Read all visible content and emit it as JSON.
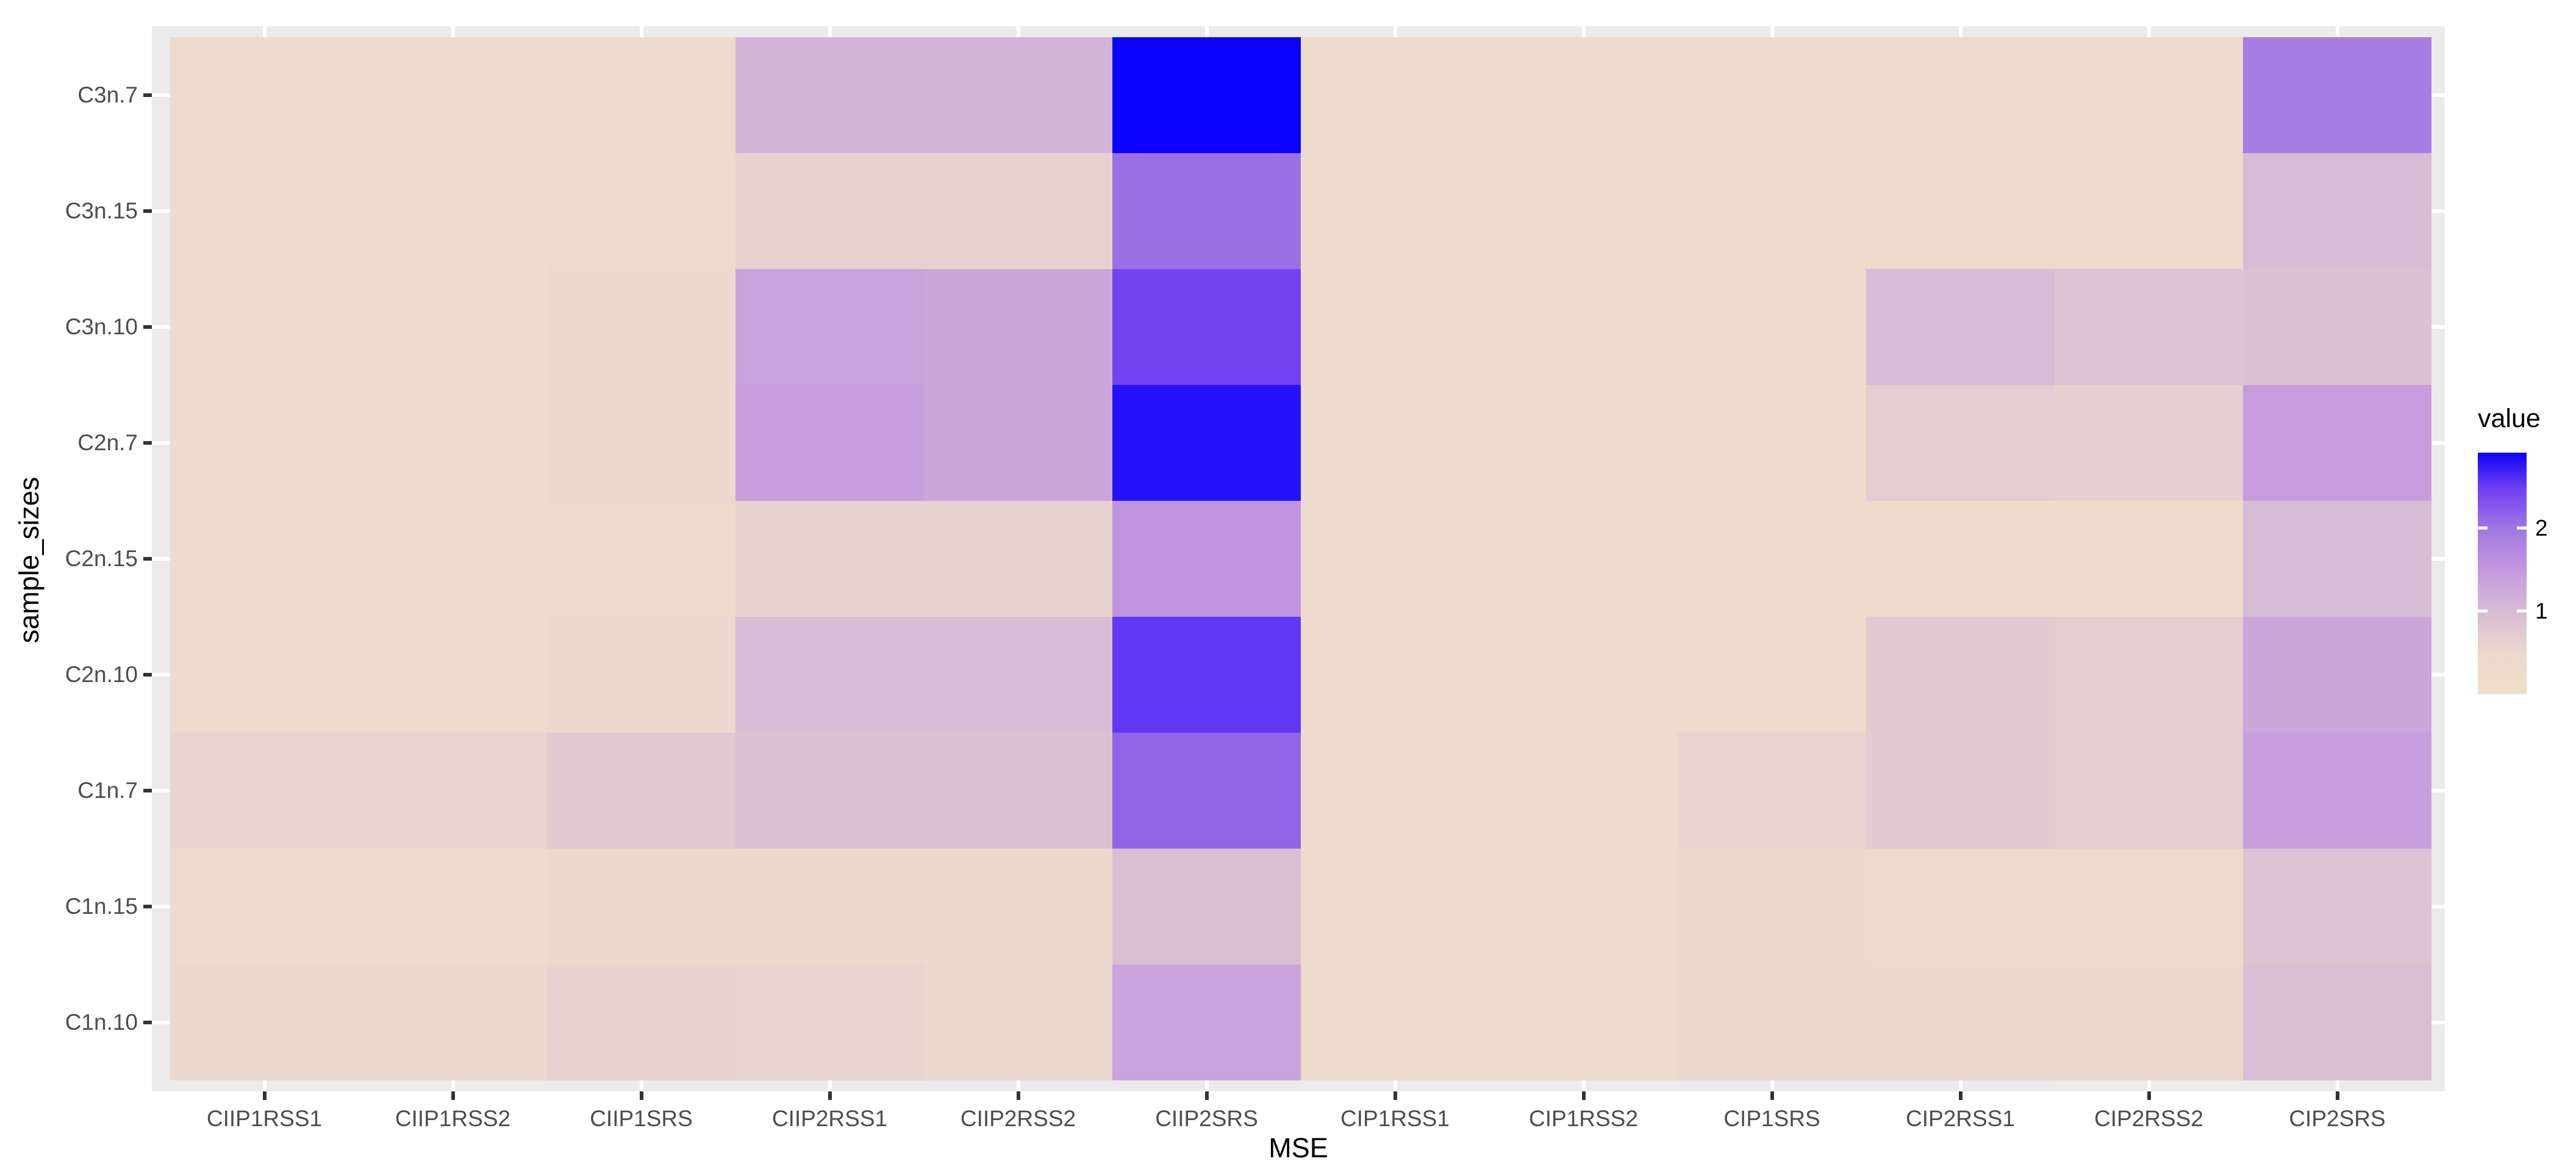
{
  "chart_data": {
    "type": "heatmap",
    "title": "",
    "xlabel": "MSE",
    "ylabel": "sample_sizes",
    "x_categories": [
      "CIIP1RSS1",
      "CIIP1RSS2",
      "CIIP1SRS",
      "CIIP2RSS1",
      "CIIP2RSS2",
      "CIIP2SRS",
      "CIP1RSS1",
      "CIP1RSS2",
      "CIP1SRS",
      "CIP2RSS1",
      "CIP2RSS2",
      "CIP2SRS"
    ],
    "y_categories_top_to_bottom": [
      "C3n.7",
      "C3n.15",
      "C3n.10",
      "C2n.7",
      "C2n.15",
      "C2n.10",
      "C1n.7",
      "C1n.15",
      "C1n.10"
    ],
    "series": [
      {
        "name": "C3n.7",
        "values": [
          0.3,
          0.3,
          0.35,
          1.1,
          1.1,
          2.91,
          0.3,
          0.3,
          0.3,
          0.35,
          0.35,
          1.9
        ]
      },
      {
        "name": "C3n.15",
        "values": [
          0.3,
          0.3,
          0.35,
          0.6,
          0.6,
          2.05,
          0.3,
          0.3,
          0.3,
          0.35,
          0.35,
          1.0
        ]
      },
      {
        "name": "C3n.10",
        "values": [
          0.3,
          0.3,
          0.4,
          1.35,
          1.3,
          2.45,
          0.3,
          0.3,
          0.3,
          1.0,
          0.85,
          0.9
        ]
      },
      {
        "name": "C2n.7",
        "values": [
          0.3,
          0.3,
          0.5,
          1.4,
          1.3,
          2.8,
          0.3,
          0.3,
          0.3,
          0.7,
          0.65,
          1.45
        ]
      },
      {
        "name": "C2n.15",
        "values": [
          0.3,
          0.3,
          0.35,
          0.6,
          0.6,
          1.55,
          0.3,
          0.3,
          0.3,
          0.3,
          0.3,
          1.0
        ]
      },
      {
        "name": "C2n.10",
        "values": [
          0.3,
          0.3,
          0.5,
          1.0,
          1.0,
          2.55,
          0.3,
          0.3,
          0.3,
          0.75,
          0.7,
          1.3
        ]
      },
      {
        "name": "C1n.7",
        "values": [
          0.55,
          0.55,
          0.75,
          0.9,
          0.9,
          2.15,
          0.3,
          0.3,
          0.55,
          0.75,
          0.7,
          1.4
        ]
      },
      {
        "name": "C1n.15",
        "values": [
          0.3,
          0.3,
          0.45,
          0.45,
          0.45,
          0.95,
          0.3,
          0.3,
          0.4,
          0.35,
          0.35,
          0.85
        ]
      },
      {
        "name": "C1n.10",
        "values": [
          0.45,
          0.45,
          0.6,
          0.55,
          0.5,
          1.35,
          0.3,
          0.3,
          0.5,
          0.5,
          0.45,
          0.95
        ]
      }
    ],
    "value_range": [
      0,
      2.91
    ],
    "legend": {
      "title": "value",
      "tick_values": [
        2,
        1
      ],
      "tick_labels": [
        "2",
        "1"
      ],
      "gradient_stops": [
        {
          "value": 0.0,
          "color": "#F0DFC7"
        },
        {
          "value": 0.5,
          "color": "#EBD8CE"
        },
        {
          "value": 1.0,
          "color": "#D6BCD4"
        },
        {
          "value": 1.5,
          "color": "#C498E0"
        },
        {
          "value": 2.0,
          "color": "#A076E2"
        },
        {
          "value": 2.5,
          "color": "#6D3EF2"
        },
        {
          "value": 2.91,
          "color": "#0A02FE"
        }
      ],
      "position": "right"
    },
    "theme": {
      "panel_background": "#EBEBEB",
      "gridline_color": "#FFFFFF",
      "axis_tick_color": "#333333",
      "tick_label_color": "#4D4D4D",
      "axis_title_color": "#000000",
      "grid": "on"
    }
  }
}
